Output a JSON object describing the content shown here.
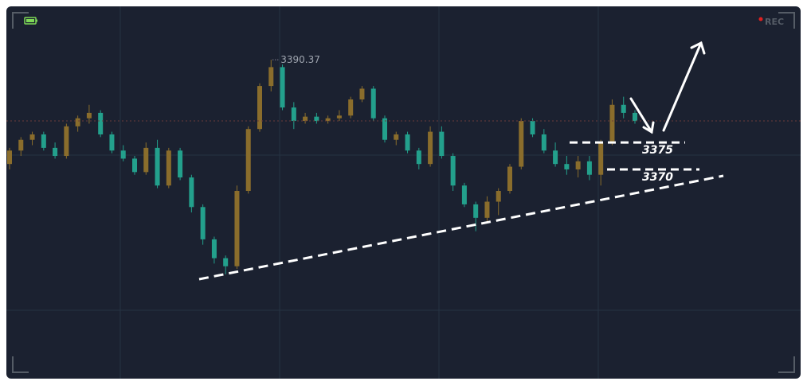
{
  "overlay": {
    "rec": "REC"
  },
  "chart_data": {
    "type": "candlestick",
    "ylim": [
      3332,
      3400
    ],
    "up_color": "#8a6d2c",
    "down_color": "#23a08c",
    "open": [
      3371,
      3373.5,
      3375.5,
      3376.5,
      3374,
      3372.5,
      3378,
      3379.5,
      3380.5,
      3376.5,
      3373.5,
      3372,
      3369.5,
      3374,
      3367,
      3373.5,
      3368.5,
      3363,
      3357,
      3353.5,
      3352,
      3366,
      3377.5,
      3385.5,
      3389,
      3381.5,
      3379,
      3379.8,
      3379,
      3379.5,
      3380,
      3383,
      3385,
      3379.5,
      3375.5,
      3376.5,
      3373.5,
      3371,
      3377,
      3372.5,
      3367,
      3363.5,
      3361,
      3364,
      3366,
      3370.5,
      3379,
      3376.5,
      3373.5,
      3371,
      3370,
      3371.5,
      3369,
      3375,
      3382,
      3380.5
    ],
    "high": [
      3374,
      3376,
      3377,
      3377,
      3375,
      3378.5,
      3380,
      3382,
      3381,
      3377,
      3374.5,
      3372.5,
      3375,
      3375.5,
      3374,
      3374,
      3369,
      3363.5,
      3357.5,
      3354,
      3367,
      3378,
      3386,
      3390.37,
      3389.5,
      3382.5,
      3380.5,
      3380.5,
      3380,
      3381,
      3383.5,
      3385.5,
      3385.5,
      3380,
      3377,
      3377,
      3374,
      3378,
      3378,
      3373,
      3367.5,
      3364,
      3365,
      3366.5,
      3371,
      3379.5,
      3379.5,
      3377.5,
      3375,
      3372.5,
      3372.5,
      3372.5,
      3375.5,
      3383,
      3383.5,
      3381
    ],
    "low": [
      3370,
      3372.5,
      3374.5,
      3373.5,
      3372,
      3372,
      3377,
      3378.5,
      3376,
      3373,
      3371.5,
      3369,
      3369,
      3366.5,
      3366.5,
      3368,
      3362,
      3356,
      3352.5,
      3350.5,
      3351.5,
      3365.5,
      3377,
      3384.5,
      3381,
      3377.5,
      3378.5,
      3378.5,
      3378.5,
      3379,
      3379.5,
      3382.5,
      3379,
      3375,
      3374.5,
      3373,
      3370,
      3370.5,
      3372,
      3366,
      3363,
      3358.5,
      3360,
      3361.5,
      3365.5,
      3370,
      3376,
      3373,
      3370.5,
      3369,
      3368.5,
      3368,
      3367,
      3374.5,
      3379.5,
      3378.5
    ],
    "close": [
      3373.5,
      3375.5,
      3376.5,
      3374,
      3372.5,
      3378,
      3379.5,
      3380.5,
      3376.5,
      3373.5,
      3372,
      3369.5,
      3374,
      3367,
      3373.5,
      3368.5,
      3363,
      3357,
      3353.5,
      3352,
      3366,
      3377.5,
      3385.5,
      3389,
      3381.5,
      3379,
      3379.8,
      3379,
      3379.5,
      3380,
      3383,
      3385,
      3379.5,
      3375.5,
      3376.5,
      3373.5,
      3371,
      3377,
      3372.5,
      3367,
      3363.5,
      3361,
      3364,
      3366,
      3370.5,
      3379,
      3376.5,
      3373.5,
      3371,
      3370,
      3371.5,
      3369,
      3375,
      3382,
      3380.5,
      3379
    ],
    "high_annotation": 3390.37,
    "levels": [
      3375,
      3370
    ]
  }
}
